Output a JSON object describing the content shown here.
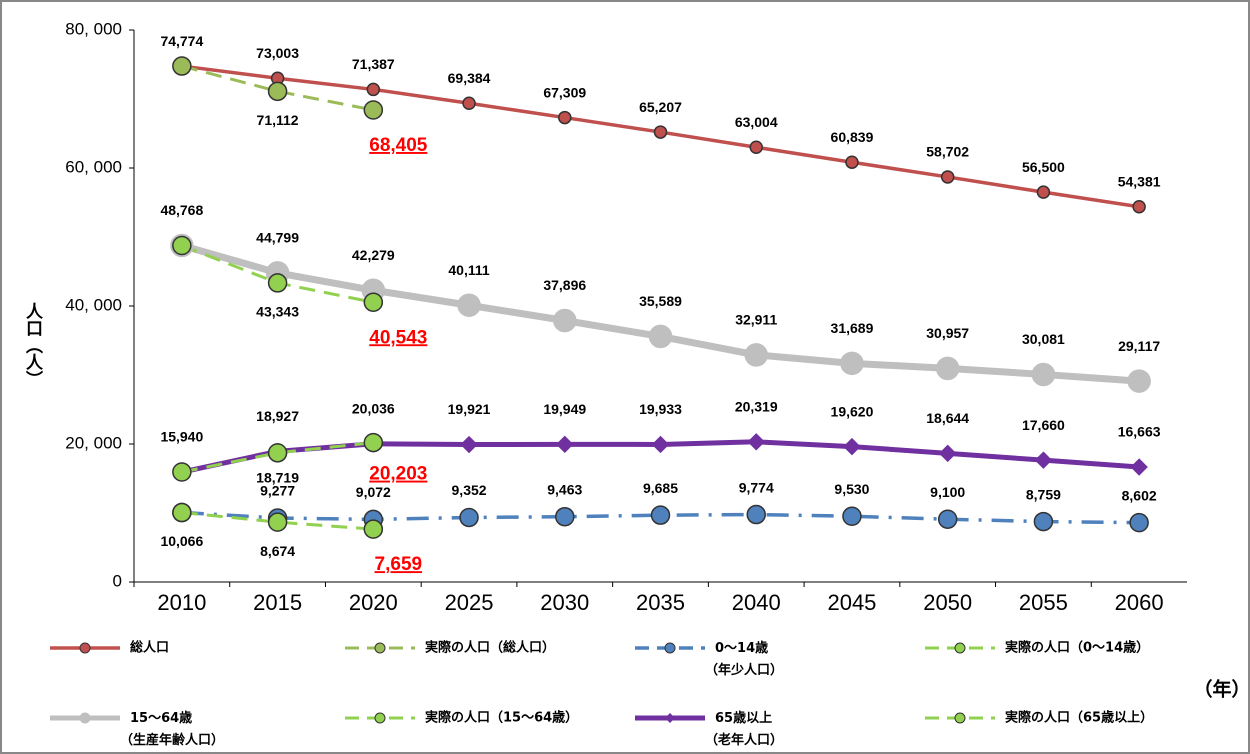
{
  "chart_data": {
    "type": "line",
    "y_label": "人口（人）",
    "x_label": "（年）",
    "categories": [
      "2010",
      "2015",
      "2020",
      "2025",
      "2030",
      "2035",
      "2040",
      "2045",
      "2050",
      "2055",
      "2060"
    ],
    "ylim": [
      0,
      80000
    ],
    "yticks": [
      {
        "value": 0,
        "label": "0"
      },
      {
        "value": 20000,
        "label": "20, 000"
      },
      {
        "value": 40000,
        "label": "40, 000"
      },
      {
        "value": 60000,
        "label": "60, 000"
      },
      {
        "value": 80000,
        "label": "80, 000"
      }
    ],
    "series": [
      {
        "name": "総人口",
        "color": "#c0504d",
        "line_style": "solid",
        "marker": "circle",
        "values": [
          74774,
          73003,
          71387,
          69384,
          67309,
          65207,
          63004,
          60839,
          58702,
          56500,
          54381
        ],
        "value_labels": [
          "74,774",
          "73,003",
          "71,387",
          "69,384",
          "67,309",
          "65,207",
          "63,004",
          "60,839",
          "58,702",
          "56,500",
          "54,381"
        ]
      },
      {
        "name": "実際の人口（総人口）",
        "color": "#9bbb59",
        "line_style": "dashed",
        "marker": "circle",
        "values": [
          74774,
          71112,
          68405,
          null,
          null,
          null,
          null,
          null,
          null,
          null,
          null
        ],
        "value_labels": [
          null,
          "71,112",
          "68,405",
          null,
          null,
          null,
          null,
          null,
          null,
          null,
          null
        ]
      },
      {
        "name": "0〜14歳（年少人口）",
        "color": "#4f81bd",
        "line_style": "dash-dot",
        "marker": "circle",
        "values": [
          10066,
          9277,
          9072,
          9352,
          9463,
          9685,
          9774,
          9530,
          9100,
          8759,
          8602
        ],
        "value_labels": [
          "10,066",
          "9,277",
          "9,072",
          "9,352",
          "9,463",
          "9,685",
          "9,774",
          "9,530",
          "9,100",
          "8,759",
          "8,602"
        ]
      },
      {
        "name": "実際の人口（0〜14歳）",
        "color": "#92d050",
        "line_style": "dashed",
        "marker": "circle",
        "values": [
          10066,
          8674,
          7659,
          null,
          null,
          null,
          null,
          null,
          null,
          null,
          null
        ],
        "value_labels": [
          null,
          "8,674",
          "7,659",
          null,
          null,
          null,
          null,
          null,
          null,
          null,
          null
        ]
      },
      {
        "name": "15〜64歳（生産年齢人口）",
        "color": "#bfbfbf",
        "line_style": "solid",
        "marker": "circle",
        "values": [
          48768,
          44799,
          42279,
          40111,
          37896,
          35589,
          32911,
          31689,
          30957,
          30081,
          29117
        ],
        "value_labels": [
          "48,768",
          "44,799",
          "42,279",
          "40,111",
          "37,896",
          "35,589",
          "32,911",
          "31,689",
          "30,957",
          "30,081",
          "29,117"
        ]
      },
      {
        "name": "実際の人口（15〜64歳）",
        "color": "#92d050",
        "line_style": "dashed",
        "marker": "circle",
        "values": [
          48768,
          43343,
          40543,
          null,
          null,
          null,
          null,
          null,
          null,
          null,
          null
        ],
        "value_labels": [
          null,
          "43,343",
          "40,543",
          null,
          null,
          null,
          null,
          null,
          null,
          null,
          null
        ]
      },
      {
        "name": "65歳以上（老年人口）",
        "color": "#7030a0",
        "line_style": "solid",
        "marker": "diamond",
        "values": [
          15940,
          18927,
          20036,
          19921,
          19949,
          19933,
          20319,
          19620,
          18644,
          17660,
          16663
        ],
        "value_labels": [
          "15,940",
          "18,927",
          "20,036",
          "19,921",
          "19,949",
          "19,933",
          "20,319",
          "19,620",
          "18,644",
          "17,660",
          "16,663"
        ]
      },
      {
        "name": "実際の人口（65歳以上）",
        "color": "#92d050",
        "line_style": "dashed",
        "marker": "circle",
        "values": [
          15940,
          18719,
          20203,
          null,
          null,
          null,
          null,
          null,
          null,
          null,
          null
        ],
        "value_labels": [
          null,
          "18,719",
          "20,203",
          null,
          null,
          null,
          null,
          null,
          null,
          null,
          null
        ]
      }
    ]
  }
}
